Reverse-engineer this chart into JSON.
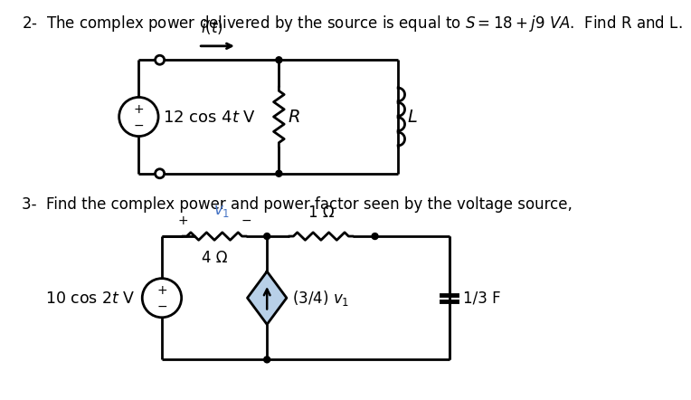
{
  "bg_color": "#ffffff",
  "line_color": "#000000",
  "blue_color": "#4472c4",
  "diamond_fill": "#b8d0e8",
  "problem2_text": "2-  The complex power delivered by the source is equal to $S = 18 + j9\\ VA$.  Find R and L.",
  "problem3_text": "3-  Find the complex power and power factor seen by the voltage source,",
  "source1_label": "12 cos 4$t$ V",
  "source2_label": "10 cos 2$t$ V",
  "it_label": "$i(t)$",
  "R_label": "$R$",
  "L_label": "$L$",
  "v1_label": "$v_1$",
  "ohm4_label": "4 Ω",
  "ohm1_label": "1 Ω",
  "dep_label": "(3/4) $v_1$",
  "cap_label": "1/3 F",
  "fs_main": 12,
  "fs_small": 9,
  "lw": 2.0
}
